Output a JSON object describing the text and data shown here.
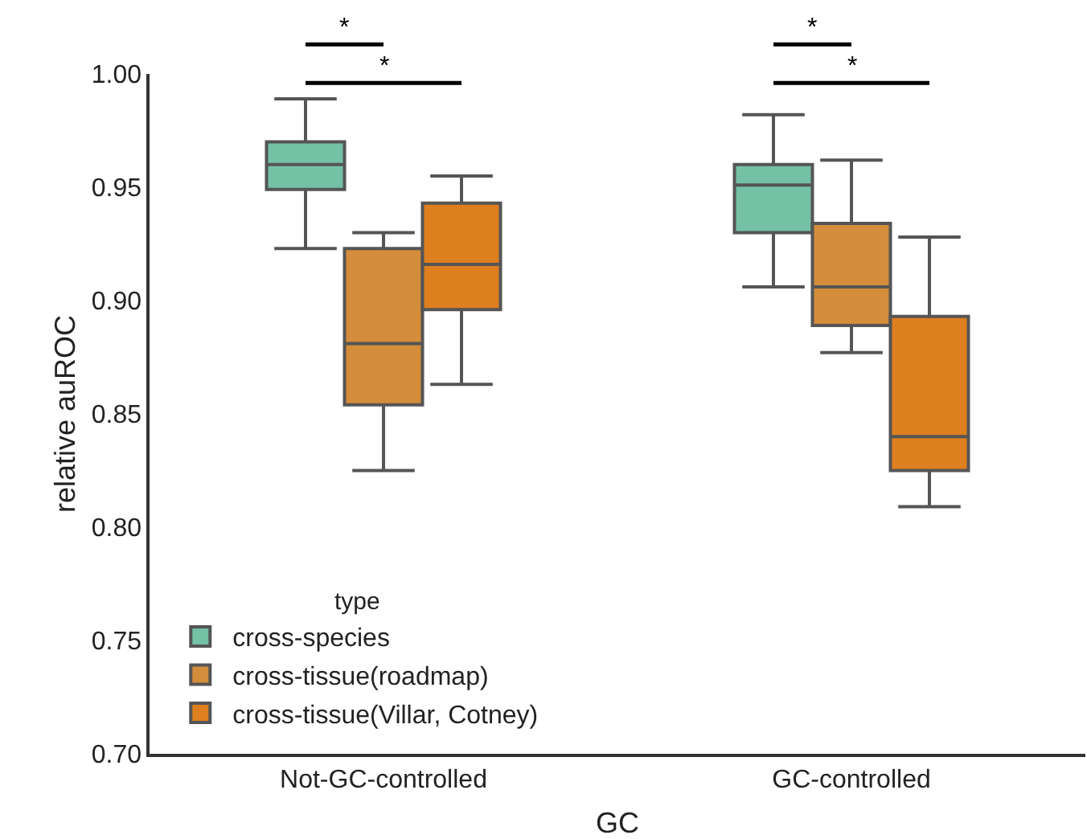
{
  "chart_data": {
    "type": "box",
    "xlabel": "GC",
    "ylabel": "relative auROC",
    "legend_title": "type",
    "legend": "bottom left",
    "grid": false,
    "categories": [
      "Not-GC-controlled",
      "GC-controlled"
    ],
    "ylim": [
      0.7,
      1.0
    ],
    "yticks": [
      {
        "value": 0.7,
        "label": "0.70"
      },
      {
        "value": 0.75,
        "label": "0.75"
      },
      {
        "value": 0.8,
        "label": "0.80"
      },
      {
        "value": 0.85,
        "label": "0.85"
      },
      {
        "value": 0.9,
        "label": "0.90"
      },
      {
        "value": 0.95,
        "label": "0.95"
      },
      {
        "value": 1.0,
        "label": "1.00"
      }
    ],
    "series": [
      {
        "name": "cross-species",
        "color": "#74c1a6",
        "boxes": [
          {
            "low": 0.923,
            "q1": 0.949,
            "median": 0.96,
            "q3": 0.97,
            "high": 0.989
          },
          {
            "low": 0.906,
            "q1": 0.93,
            "median": 0.951,
            "q3": 0.96,
            "high": 0.982
          }
        ]
      },
      {
        "name": "cross-tissue(roadmap)",
        "color": "#d38d3b",
        "boxes": [
          {
            "low": 0.825,
            "q1": 0.854,
            "median": 0.881,
            "q3": 0.923,
            "high": 0.93
          },
          {
            "low": 0.877,
            "q1": 0.889,
            "median": 0.906,
            "q3": 0.934,
            "high": 0.962
          }
        ]
      },
      {
        "name": "cross-tissue(Villar, Cotney)",
        "color": "#de7f20",
        "boxes": [
          {
            "low": 0.863,
            "q1": 0.896,
            "median": 0.916,
            "q3": 0.943,
            "high": 0.955
          },
          {
            "low": 0.809,
            "q1": 0.825,
            "median": 0.84,
            "q3": 0.893,
            "high": 0.928
          }
        ]
      }
    ],
    "annotations": [
      "*",
      "*",
      "*",
      "*"
    ]
  }
}
